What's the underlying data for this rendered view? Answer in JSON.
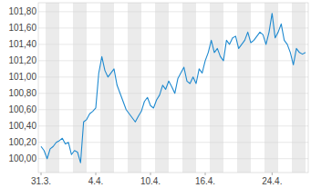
{
  "chart_data": {
    "type": "line",
    "categories": [
      "31.3.",
      null,
      null,
      null,
      null,
      null,
      null,
      null,
      null,
      null,
      null,
      null,
      null,
      null,
      null,
      null,
      null,
      null,
      "4.4.",
      null,
      null,
      null,
      null,
      null,
      null,
      null,
      null,
      null,
      null,
      null,
      null,
      null,
      null,
      null,
      null,
      null,
      "10.4.",
      null,
      null,
      null,
      null,
      null,
      null,
      null,
      null,
      null,
      null,
      null,
      null,
      null,
      null,
      null,
      null,
      null,
      "16.4.",
      null,
      null,
      null,
      null,
      null,
      null,
      null,
      null,
      null,
      null,
      null,
      null,
      null,
      null,
      null,
      null,
      null,
      null,
      null,
      null,
      null,
      "24.4.",
      null,
      null,
      null,
      null,
      null,
      null,
      null,
      null,
      null,
      null,
      null
    ],
    "values": [
      100.15,
      100.1,
      100.0,
      100.12,
      100.15,
      100.2,
      100.22,
      100.25,
      100.18,
      100.2,
      100.05,
      100.1,
      100.08,
      99.95,
      100.45,
      100.48,
      100.55,
      100.58,
      100.62,
      101.05,
      101.25,
      101.08,
      101.0,
      101.05,
      101.1,
      100.9,
      100.8,
      100.7,
      100.6,
      100.55,
      100.5,
      100.45,
      100.52,
      100.58,
      100.7,
      100.75,
      100.65,
      100.62,
      100.72,
      100.78,
      100.9,
      100.85,
      100.95,
      100.88,
      100.8,
      100.98,
      101.05,
      101.12,
      100.95,
      100.92,
      101.0,
      100.92,
      101.1,
      101.05,
      101.2,
      101.3,
      101.45,
      101.3,
      101.35,
      101.25,
      101.2,
      101.45,
      101.4,
      101.48,
      101.5,
      101.35,
      101.4,
      101.45,
      101.55,
      101.42,
      101.45,
      101.5,
      101.55,
      101.52,
      101.4,
      101.55,
      101.78,
      101.48,
      101.55,
      101.65,
      101.45,
      101.4,
      101.3,
      101.15,
      101.35,
      101.3,
      101.28,
      101.3
    ],
    "color": "#1f8ad0",
    "ylim": [
      99.83,
      101.91
    ],
    "yticks": [
      {
        "value": 100.0,
        "label": "100,00"
      },
      {
        "value": 100.2,
        "label": "100,20"
      },
      {
        "value": 100.4,
        "label": "100,40"
      },
      {
        "value": 100.6,
        "label": "100,60"
      },
      {
        "value": 100.8,
        "label": "100,80"
      },
      {
        "value": 101.0,
        "label": "101,00"
      },
      {
        "value": 101.2,
        "label": "101,20"
      },
      {
        "value": 101.4,
        "label": "101,40"
      },
      {
        "value": 101.6,
        "label": "101,60"
      },
      {
        "value": 101.8,
        "label": "101,80"
      }
    ],
    "grid": true
  }
}
